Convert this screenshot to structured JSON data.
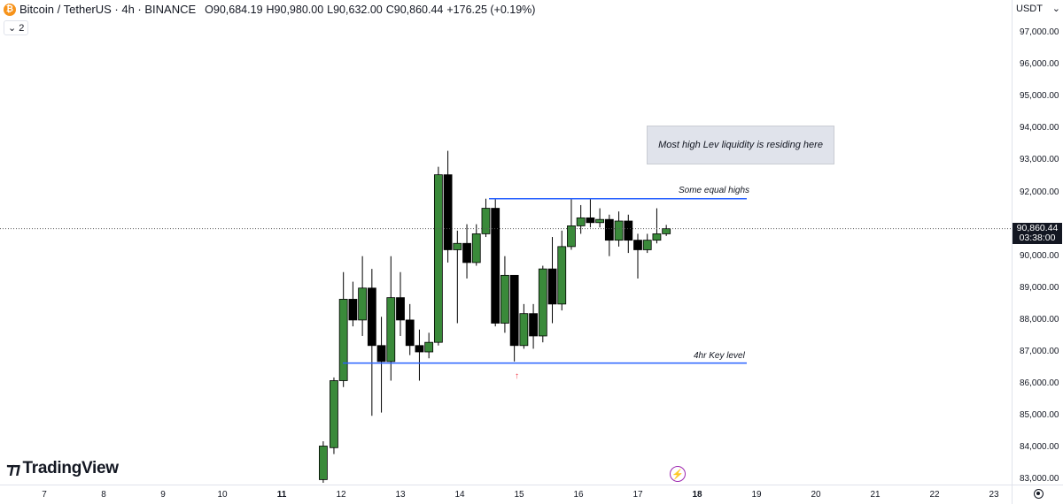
{
  "legend": {
    "coin_symbol": "₿",
    "title": "Bitcoin / TetherUS · 4h · BINANCE",
    "open_label": "O",
    "open": "90,684.19",
    "high_label": "H",
    "high": "90,980.00",
    "low_label": "L",
    "low": "90,632.00",
    "close_label": "C",
    "close": "90,860.44",
    "change": "+176.25 (+0.19%)",
    "collapse_count": "2",
    "collapse_icon": "chevron-down-icon"
  },
  "price_axis": {
    "currency": "USDT",
    "labels": [
      "97,000.00",
      "96,000.00",
      "95,000.00",
      "94,000.00",
      "93,000.00",
      "92,000.00",
      "90,000.00",
      "89,000.00",
      "88,000.00",
      "87,000.00",
      "86,000.00",
      "85,000.00",
      "84,000.00",
      "83,000.00"
    ],
    "last_price": "90,860.44",
    "countdown": "03:38:00"
  },
  "time_axis": {
    "labels": [
      "7",
      "8",
      "9",
      "10",
      "11",
      "12",
      "13",
      "14",
      "15",
      "16",
      "17",
      "18",
      "19",
      "20",
      "21",
      "22",
      "23"
    ]
  },
  "annotations": {
    "note_box": "Most high Lev liquidity is residing here",
    "equal_highs": "Some equal highs",
    "key_level": "4hr Key level",
    "equal_highs_price": 91800,
    "key_level_price": 86650
  },
  "branding": {
    "logo_text": "TradingView"
  },
  "colors": {
    "up": "#3a8a3a",
    "down": "#000000",
    "line": "#2962ff",
    "marker": "#f23645",
    "flash": "#9c27b0"
  },
  "chart_data": {
    "type": "candlestick",
    "title": "Bitcoin / TetherUS · 4h · BINANCE",
    "ylim": [
      82900,
      97800
    ],
    "x_ticks": [
      "7",
      "8",
      "9",
      "10",
      "11",
      "12",
      "13",
      "14",
      "15",
      "16",
      "17",
      "18",
      "19",
      "20",
      "21",
      "22",
      "23"
    ],
    "candles": [
      {
        "day": 11.7,
        "o": 83000,
        "h": 84200,
        "l": 82900,
        "c": 84050
      },
      {
        "day": 11.88,
        "o": 84000,
        "h": 86200,
        "l": 83800,
        "c": 86100
      },
      {
        "day": 12.04,
        "o": 86100,
        "h": 89500,
        "l": 85900,
        "c": 88650
      },
      {
        "day": 12.2,
        "o": 88650,
        "h": 89200,
        "l": 87800,
        "c": 88000
      },
      {
        "day": 12.36,
        "o": 88000,
        "h": 90000,
        "l": 87500,
        "c": 89000
      },
      {
        "day": 12.52,
        "o": 89000,
        "h": 89600,
        "l": 85000,
        "c": 87200
      },
      {
        "day": 12.68,
        "o": 87200,
        "h": 88100,
        "l": 85100,
        "c": 86700
      },
      {
        "day": 12.84,
        "o": 86700,
        "h": 90000,
        "l": 86100,
        "c": 88700
      },
      {
        "day": 13.0,
        "o": 88700,
        "h": 89500,
        "l": 87500,
        "c": 88000
      },
      {
        "day": 13.16,
        "o": 88000,
        "h": 88500,
        "l": 86900,
        "c": 87200
      },
      {
        "day": 13.32,
        "o": 87200,
        "h": 87700,
        "l": 86100,
        "c": 87000
      },
      {
        "day": 13.48,
        "o": 87000,
        "h": 87600,
        "l": 86800,
        "c": 87300
      },
      {
        "day": 13.64,
        "o": 87300,
        "h": 92800,
        "l": 87200,
        "c": 92550
      },
      {
        "day": 13.8,
        "o": 92550,
        "h": 93300,
        "l": 89800,
        "c": 90200
      },
      {
        "day": 13.96,
        "o": 90200,
        "h": 90800,
        "l": 87900,
        "c": 90400
      },
      {
        "day": 14.12,
        "o": 90400,
        "h": 91000,
        "l": 89300,
        "c": 89800
      },
      {
        "day": 14.28,
        "o": 89800,
        "h": 91000,
        "l": 89700,
        "c": 90700
      },
      {
        "day": 14.44,
        "o": 90700,
        "h": 91800,
        "l": 90600,
        "c": 91500
      },
      {
        "day": 14.6,
        "o": 91500,
        "h": 91800,
        "l": 87800,
        "c": 87900
      },
      {
        "day": 14.76,
        "o": 87900,
        "h": 90000,
        "l": 87600,
        "c": 89400
      },
      {
        "day": 14.92,
        "o": 89400,
        "h": 89400,
        "l": 86700,
        "c": 87200
      },
      {
        "day": 15.08,
        "o": 87200,
        "h": 88500,
        "l": 87100,
        "c": 88200
      },
      {
        "day": 15.24,
        "o": 88200,
        "h": 88500,
        "l": 87100,
        "c": 87500
      },
      {
        "day": 15.4,
        "o": 87500,
        "h": 89700,
        "l": 87300,
        "c": 89600
      },
      {
        "day": 15.56,
        "o": 89600,
        "h": 90600,
        "l": 87900,
        "c": 88500
      },
      {
        "day": 15.72,
        "o": 88500,
        "h": 90800,
        "l": 88300,
        "c": 90300
      },
      {
        "day": 15.88,
        "o": 90300,
        "h": 91800,
        "l": 90200,
        "c": 90950
      },
      {
        "day": 16.04,
        "o": 90950,
        "h": 91600,
        "l": 90700,
        "c": 91200
      },
      {
        "day": 16.2,
        "o": 91200,
        "h": 91800,
        "l": 90900,
        "c": 91050
      },
      {
        "day": 16.36,
        "o": 91050,
        "h": 91500,
        "l": 90900,
        "c": 91150
      },
      {
        "day": 16.52,
        "o": 91150,
        "h": 91300,
        "l": 90000,
        "c": 90500
      },
      {
        "day": 16.68,
        "o": 90500,
        "h": 91400,
        "l": 90300,
        "c": 91100
      },
      {
        "day": 16.84,
        "o": 91100,
        "h": 91300,
        "l": 90100,
        "c": 90500
      },
      {
        "day": 17.0,
        "o": 90500,
        "h": 90700,
        "l": 89300,
        "c": 90200
      },
      {
        "day": 17.16,
        "o": 90200,
        "h": 90700,
        "l": 90100,
        "c": 90500
      },
      {
        "day": 17.32,
        "o": 90500,
        "h": 91500,
        "l": 90400,
        "c": 90700
      },
      {
        "day": 17.48,
        "o": 90700,
        "h": 90980,
        "l": 90632,
        "c": 90860
      }
    ]
  }
}
